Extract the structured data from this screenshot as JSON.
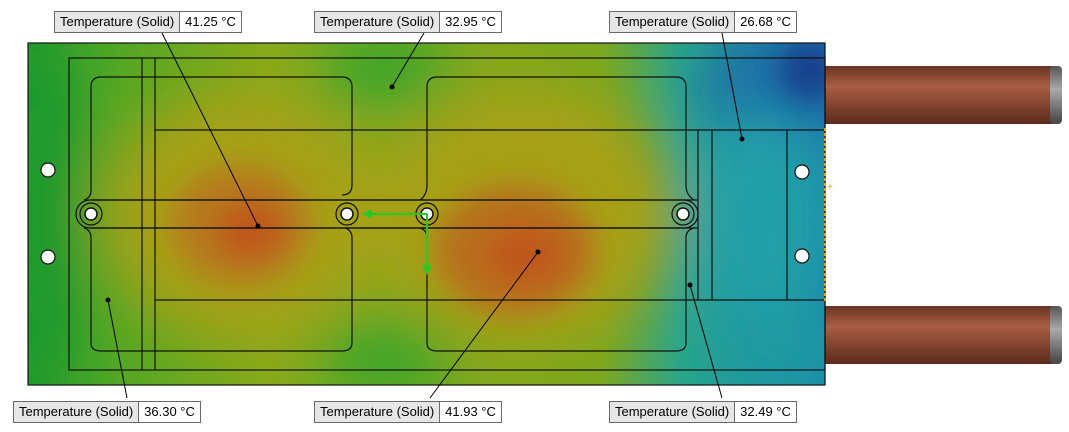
{
  "probes": [
    {
      "id": "top-left",
      "name": "Temperature (Solid)",
      "value": "41.25 °C"
    },
    {
      "id": "top-center",
      "name": "Temperature (Solid)",
      "value": "32.95 °C"
    },
    {
      "id": "top-right",
      "name": "Temperature (Solid)",
      "value": "26.68 °C"
    },
    {
      "id": "bottom-left",
      "name": "Temperature (Solid)",
      "value": "36.30 °C"
    },
    {
      "id": "bottom-center",
      "name": "Temperature (Solid)",
      "value": "41.93 °C"
    },
    {
      "id": "bottom-right",
      "name": "Temperature (Solid)",
      "value": "32.49 °C"
    }
  ],
  "colors": {
    "hot": "#c1571c",
    "warm": "#9da31a",
    "mid": "#32a332",
    "cool": "#20a8b4",
    "cold": "#1a4b94",
    "copper": "#8a4a36",
    "triad_x": "#22cc22"
  }
}
